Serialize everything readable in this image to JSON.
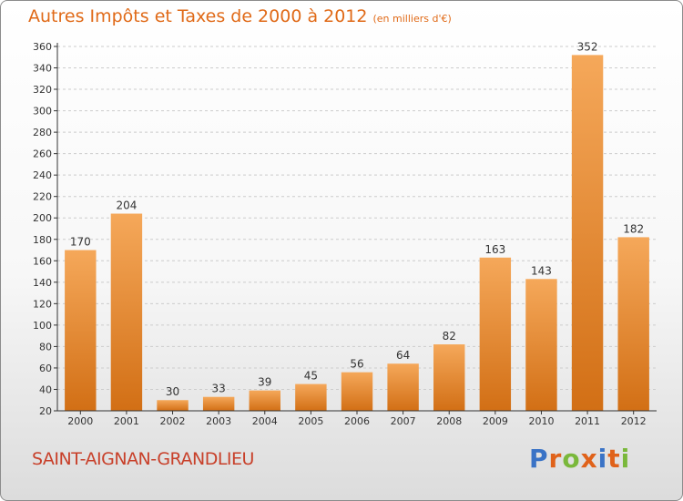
{
  "header": {
    "title": "Autres Impôts et Taxes de 2000 à 2012",
    "subtitle": "(en milliers d'€)"
  },
  "footer": {
    "commune": "SAINT-AIGNAN-GRANDLIEU",
    "logo": {
      "text": "Proxiti",
      "letter_colors": [
        "#3a73c6",
        "#e0621a",
        "#7ab83b",
        "#e0621a",
        "#3a73c6",
        "#e0621a",
        "#7ab83b"
      ]
    }
  },
  "chart_data": {
    "type": "bar",
    "title": "Autres Impôts et Taxes de 2000 à 2012",
    "subtitle": "(en milliers d'€)",
    "categories": [
      "2000",
      "2001",
      "2002",
      "2003",
      "2004",
      "2005",
      "2006",
      "2007",
      "2008",
      "2009",
      "2010",
      "2011",
      "2012"
    ],
    "values": [
      170,
      204,
      30,
      33,
      39,
      45,
      56,
      64,
      82,
      163,
      143,
      352,
      182
    ],
    "ylim": [
      20,
      360
    ],
    "yticks": [
      20,
      40,
      60,
      80,
      100,
      120,
      140,
      160,
      180,
      200,
      220,
      240,
      260,
      280,
      300,
      320,
      340,
      360
    ],
    "grid": true,
    "data_labels": true,
    "colors": {
      "bar_top": "#f5a85a",
      "bar_bottom": "#d26f15",
      "grid": "#cccccc",
      "axis": "#333333",
      "label": "#333333"
    }
  }
}
